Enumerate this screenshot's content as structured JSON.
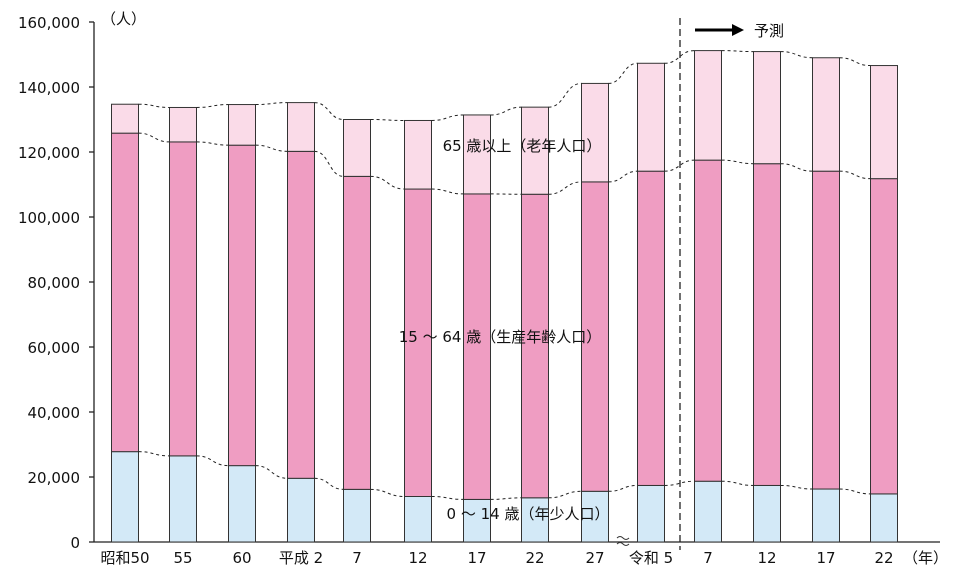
{
  "chart_data": {
    "type": "bar",
    "stacked": true,
    "yunit": "（人）",
    "xunit": "（年）",
    "ylim": [
      0,
      160000
    ],
    "yticks": [
      "0",
      "20,000",
      "40,000",
      "60,000",
      "80,000",
      "100,000",
      "120,000",
      "140,000",
      "160,000"
    ],
    "categories": [
      "昭和50",
      "55",
      "60",
      "平成 2",
      "7",
      "12",
      "17",
      "22",
      "27",
      "令和 5",
      "7",
      "12",
      "17",
      "22"
    ],
    "series": [
      {
        "name": "0 ～ 14 歳（年少人口）",
        "color": "#d3e9f7",
        "values": [
          27800,
          26500,
          23500,
          19600,
          16200,
          14000,
          13100,
          13600,
          15600,
          17400,
          18700,
          17400,
          16300,
          14800
        ]
      },
      {
        "name": "15 ～ 64 歳（生産年齢人口）",
        "color": "#ef9dc2",
        "values": [
          98000,
          96600,
          98600,
          100600,
          96300,
          94600,
          94000,
          93400,
          95200,
          96700,
          98800,
          99000,
          97800,
          97000
        ]
      },
      {
        "name": "65 歳以上（老年人口）",
        "color": "#fadbe8",
        "values": [
          8900,
          10600,
          12500,
          15000,
          17500,
          21100,
          24300,
          26800,
          30300,
          33200,
          33700,
          34500,
          34900,
          34800
        ]
      }
    ],
    "forecast_label": "予測",
    "forecast_start_index": 10,
    "axis_break": true,
    "grid": false,
    "legend": "inline labels"
  }
}
